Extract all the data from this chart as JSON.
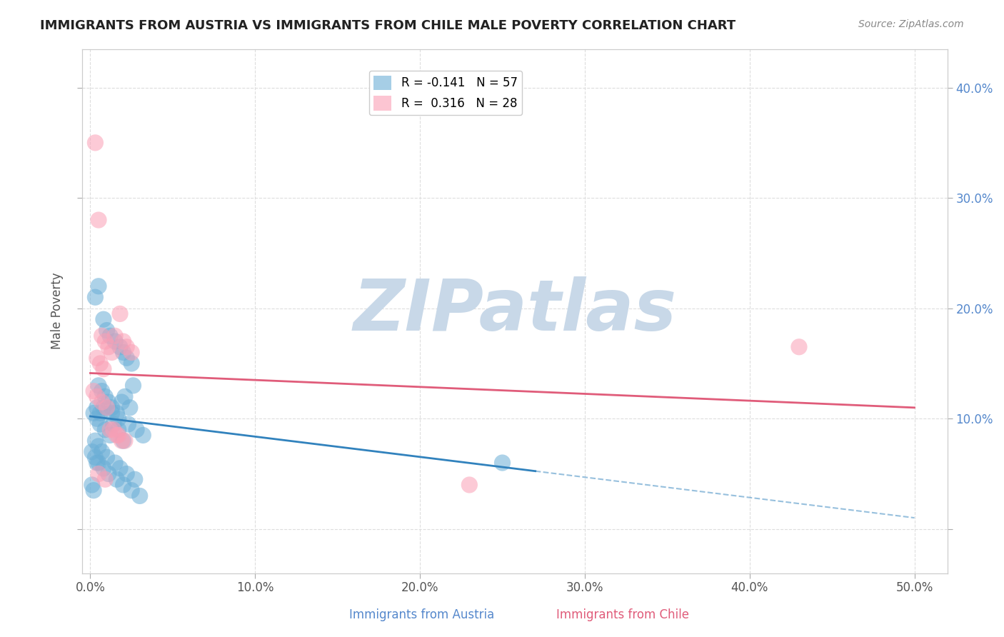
{
  "title": "IMMIGRANTS FROM AUSTRIA VS IMMIGRANTS FROM CHILE MALE POVERTY CORRELATION CHART",
  "source": "Source: ZipAtlas.com",
  "xlabel_ticks": [
    0.0,
    0.1,
    0.2,
    0.3,
    0.4,
    0.5
  ],
  "xlabel_labels": [
    "0.0%",
    "10.0%",
    "20.0%",
    "30.0%",
    "40.0%",
    "50.0%"
  ],
  "ylabel_ticks": [
    0.0,
    0.1,
    0.2,
    0.3,
    0.4
  ],
  "ylabel_labels": [
    "",
    "10.0%",
    "20.0%",
    "30.0%",
    "40.0%"
  ],
  "ylabel_label": "Male Poverty",
  "xlim": [
    -0.005,
    0.52
  ],
  "ylim": [
    -0.04,
    0.435
  ],
  "austria_R": -0.141,
  "austria_N": 57,
  "chile_R": 0.316,
  "chile_N": 28,
  "austria_color": "#6baed6",
  "chile_color": "#fa9fb5",
  "austria_line_color": "#3182bd",
  "chile_line_color": "#e05c7a",
  "watermark_text": "ZIPatlas",
  "watermark_color": "#c8d8e8",
  "legend_box_color": "#f0f0f0",
  "austria_scatter_x": [
    0.005,
    0.003,
    0.008,
    0.01,
    0.012,
    0.015,
    0.018,
    0.02,
    0.022,
    0.025,
    0.005,
    0.007,
    0.009,
    0.011,
    0.013,
    0.016,
    0.019,
    0.021,
    0.024,
    0.026,
    0.004,
    0.006,
    0.008,
    0.013,
    0.017,
    0.023,
    0.028,
    0.032,
    0.002,
    0.004,
    0.006,
    0.009,
    0.012,
    0.014,
    0.017,
    0.02,
    0.003,
    0.005,
    0.007,
    0.01,
    0.015,
    0.018,
    0.022,
    0.027,
    0.001,
    0.003,
    0.005,
    0.008,
    0.011,
    0.016,
    0.02,
    0.025,
    0.03,
    0.001,
    0.002,
    0.004,
    0.25
  ],
  "austria_scatter_y": [
    0.22,
    0.21,
    0.19,
    0.18,
    0.175,
    0.17,
    0.165,
    0.16,
    0.155,
    0.15,
    0.13,
    0.125,
    0.12,
    0.115,
    0.11,
    0.105,
    0.115,
    0.12,
    0.11,
    0.13,
    0.11,
    0.105,
    0.11,
    0.105,
    0.1,
    0.095,
    0.09,
    0.085,
    0.105,
    0.1,
    0.095,
    0.09,
    0.085,
    0.095,
    0.09,
    0.08,
    0.08,
    0.075,
    0.07,
    0.065,
    0.06,
    0.055,
    0.05,
    0.045,
    0.07,
    0.065,
    0.06,
    0.055,
    0.05,
    0.045,
    0.04,
    0.035,
    0.03,
    0.04,
    0.035,
    0.06,
    0.06
  ],
  "chile_scatter_x": [
    0.003,
    0.005,
    0.007,
    0.009,
    0.011,
    0.013,
    0.015,
    0.018,
    0.02,
    0.022,
    0.025,
    0.004,
    0.006,
    0.008,
    0.012,
    0.016,
    0.019,
    0.002,
    0.004,
    0.007,
    0.01,
    0.014,
    0.017,
    0.021,
    0.43,
    0.005,
    0.009,
    0.23
  ],
  "chile_scatter_y": [
    0.35,
    0.28,
    0.175,
    0.17,
    0.165,
    0.16,
    0.175,
    0.195,
    0.17,
    0.165,
    0.16,
    0.155,
    0.15,
    0.145,
    0.09,
    0.085,
    0.08,
    0.125,
    0.12,
    0.115,
    0.11,
    0.09,
    0.085,
    0.08,
    0.165,
    0.05,
    0.045,
    0.04
  ],
  "background_color": "#ffffff",
  "grid_color": "#dddddd"
}
